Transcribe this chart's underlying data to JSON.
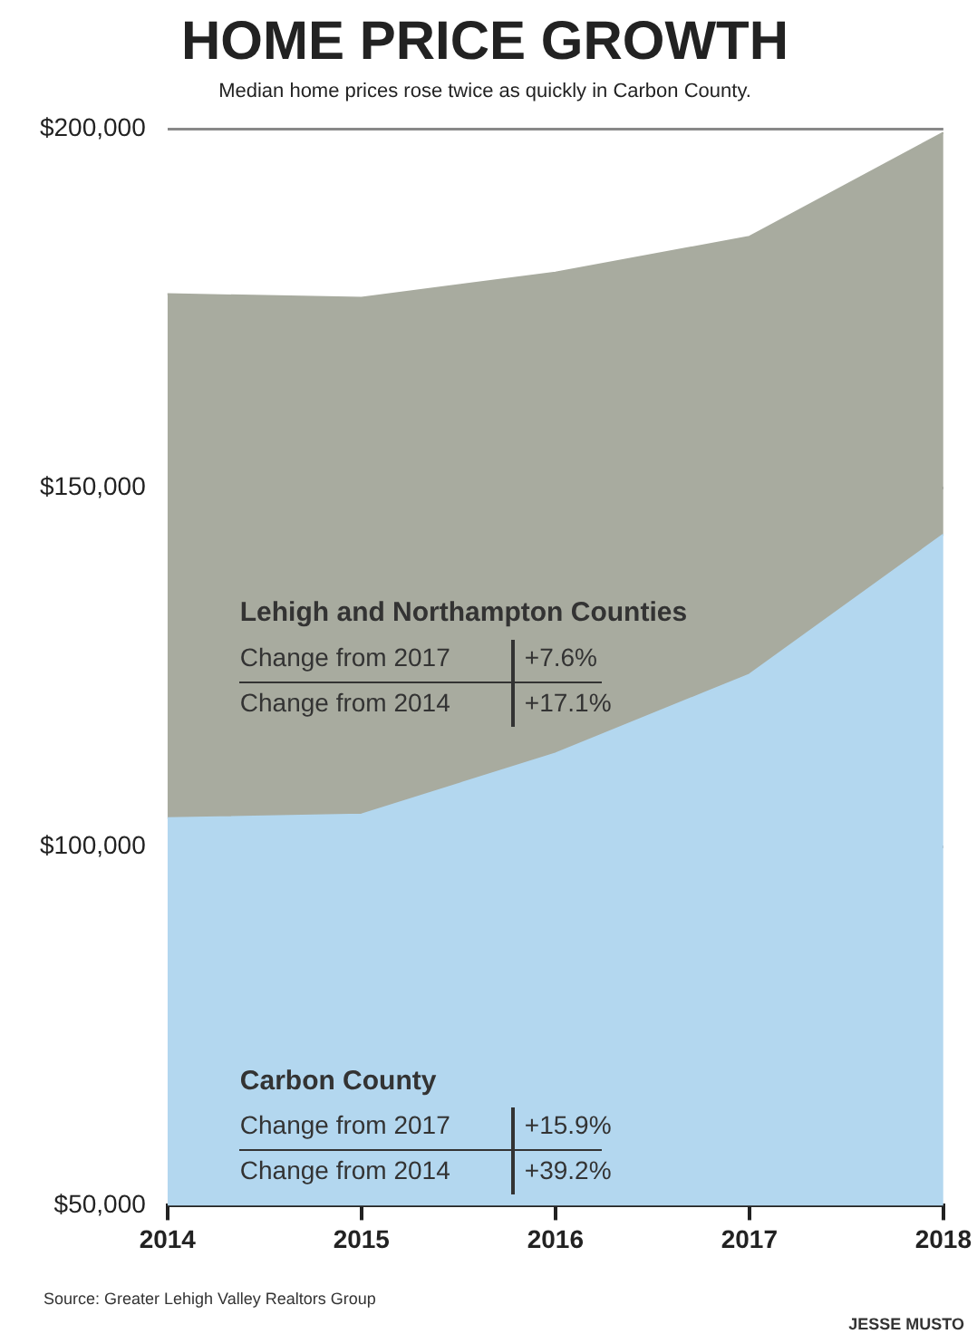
{
  "chart_data": {
    "type": "area",
    "title": "HOME PRICE GROWTH",
    "subtitle": "Median home prices rose twice as quickly in Carbon County.",
    "categories": [
      "2014",
      "2015",
      "2016",
      "2017",
      "2018"
    ],
    "series": [
      {
        "name": "Carbon County",
        "color": "#b3d7ef",
        "values": [
          104000,
          104500,
          113000,
          124000,
          143500
        ]
      },
      {
        "name": "Lehigh and Northampton Counties",
        "color": "#a8ab9f",
        "values": [
          177000,
          176500,
          180000,
          185000,
          199500
        ]
      }
    ],
    "ylim": [
      50000,
      200000
    ],
    "yticks": [
      {
        "value": 50000,
        "label": "$50,000"
      },
      {
        "value": 100000,
        "label": "$100,000"
      },
      {
        "value": 150000,
        "label": "$150,000"
      },
      {
        "value": 200000,
        "label": "$200,000"
      }
    ],
    "grid": "y",
    "legend": false,
    "annotations": [
      "Change from 2017",
      "+15.9%",
      "Change from 2014",
      "+39.2%",
      "Change from 2017",
      "+7.6%",
      "Change from 2014",
      "+17.1%",
      "Source: Greater Lehigh Valley Realtors Group",
      "JESSE MUSTO"
    ]
  }
}
